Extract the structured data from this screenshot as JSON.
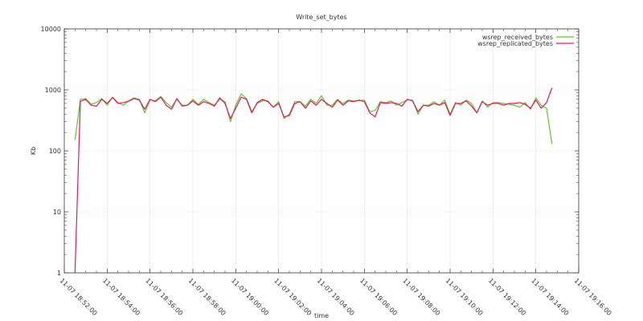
{
  "chart_data": {
    "type": "line",
    "title": "Write_set_bytes",
    "xlabel": "time",
    "ylabel": "Kb",
    "yscale": "log",
    "ylim": [
      1,
      10000
    ],
    "yticks": [
      "1",
      "10",
      "100",
      "1000",
      "10000"
    ],
    "xlim": [
      "11-07 18:52:00",
      "11-07 19:16:00"
    ],
    "xticks": [
      "11-07 18:52:00",
      "11-07 18:54:00",
      "11-07 18:56:00",
      "11-07 18:58:00",
      "11-07 19:00:00",
      "11-07 19:02:00",
      "11-07 19:04:00",
      "11-07 19:06:00",
      "11-07 19:08:00",
      "11-07 19:10:00",
      "11-07 19:12:00",
      "11-07 19:14:00",
      "11-07 19:16:00"
    ],
    "grid": true,
    "legend_position": "top-right",
    "x": [
      "18:52:30",
      "18:52:45",
      "18:53:00",
      "18:53:15",
      "18:53:30",
      "18:53:45",
      "18:54:00",
      "18:54:15",
      "18:54:30",
      "18:54:45",
      "18:55:00",
      "18:55:15",
      "18:55:30",
      "18:55:45",
      "18:56:00",
      "18:56:15",
      "18:56:30",
      "18:56:45",
      "18:57:00",
      "18:57:15",
      "18:57:30",
      "18:57:45",
      "18:58:00",
      "18:58:15",
      "18:58:30",
      "18:58:45",
      "18:59:00",
      "18:59:15",
      "18:59:30",
      "18:59:45",
      "19:00:00",
      "19:00:15",
      "19:00:30",
      "19:00:45",
      "19:01:00",
      "19:01:15",
      "19:01:30",
      "19:01:45",
      "19:02:00",
      "19:02:15",
      "19:02:30",
      "19:02:45",
      "19:03:00",
      "19:03:15",
      "19:03:30",
      "19:03:45",
      "19:04:00",
      "19:04:15",
      "19:04:30",
      "19:04:45",
      "19:05:00",
      "19:05:15",
      "19:05:30",
      "19:05:45",
      "19:06:00",
      "19:06:15",
      "19:06:30",
      "19:06:45",
      "19:07:00",
      "19:07:15",
      "19:07:30",
      "19:07:45",
      "19:08:00",
      "19:08:15",
      "19:08:30",
      "19:08:45",
      "19:09:00",
      "19:09:15",
      "19:09:30",
      "19:09:45",
      "19:10:00",
      "19:10:15",
      "19:10:30",
      "19:10:45",
      "19:11:00",
      "19:11:15",
      "19:11:30",
      "19:11:45",
      "19:12:00",
      "19:12:15",
      "19:12:30",
      "19:12:45",
      "19:13:00",
      "19:13:15",
      "19:13:30",
      "19:13:45",
      "19:14:00",
      "19:14:15",
      "19:14:30",
      "19:14:45"
    ],
    "series": [
      {
        "name": "wsrep_received_bytes",
        "color": "#66c42f",
        "values": [
          150,
          700,
          720,
          580,
          620,
          720,
          560,
          760,
          620,
          560,
          660,
          740,
          700,
          420,
          680,
          660,
          780,
          620,
          520,
          700,
          560,
          560,
          700,
          580,
          700,
          620,
          560,
          700,
          640,
          300,
          560,
          860,
          720,
          440,
          600,
          660,
          660,
          520,
          640,
          340,
          400,
          640,
          640,
          540,
          700,
          600,
          800,
          560,
          560,
          700,
          600,
          680,
          660,
          660,
          680,
          440,
          460,
          640,
          620,
          660,
          560,
          620,
          680,
          680,
          400,
          560,
          560,
          640,
          560,
          680,
          400,
          620,
          560,
          680,
          600,
          420,
          660,
          520,
          620,
          620,
          600,
          580,
          560,
          520,
          620,
          480,
          740,
          560,
          500,
          130
        ]
      },
      {
        "name": "wsrep_replicated_bytes",
        "color": "#e6175c",
        "values": [
          1,
          650,
          700,
          560,
          540,
          700,
          600,
          750,
          600,
          620,
          650,
          720,
          680,
          480,
          700,
          640,
          760,
          560,
          480,
          720,
          540,
          560,
          660,
          560,
          640,
          600,
          540,
          740,
          600,
          340,
          500,
          760,
          700,
          420,
          620,
          700,
          640,
          520,
          600,
          360,
          380,
          600,
          640,
          500,
          660,
          560,
          700,
          600,
          520,
          680,
          560,
          660,
          640,
          680,
          640,
          420,
          360,
          620,
          600,
          620,
          600,
          540,
          700,
          660,
          440,
          560,
          540,
          600,
          560,
          620,
          380,
          600,
          600,
          660,
          540,
          420,
          640,
          560,
          600,
          600,
          560,
          600,
          600,
          620,
          580,
          500,
          680,
          500,
          620,
          1080
        ]
      }
    ]
  }
}
